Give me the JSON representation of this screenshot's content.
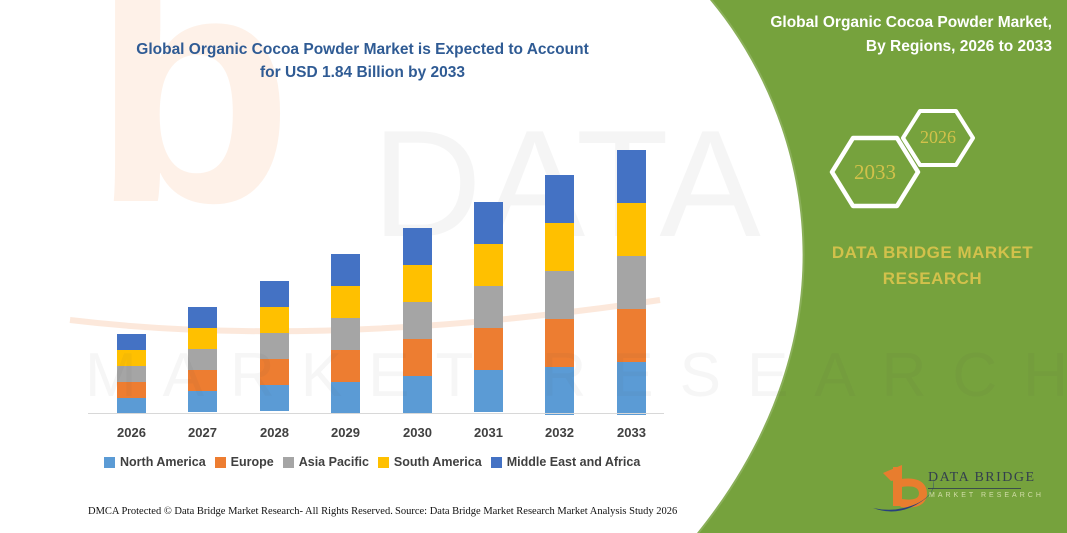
{
  "title": {
    "line1": "Global Organic Cocoa Powder Market is Expected to Account",
    "line2": "for USD 1.84 Billion by 2033"
  },
  "banner": {
    "line1": "Global Organic Cocoa Powder Market,",
    "line2": "By Regions, 2026 to 2033",
    "hexagons": [
      "2033",
      "2026"
    ],
    "brand": {
      "line1": "DATA BRIDGE MARKET",
      "line2": "RESEARCH"
    },
    "green_color": "#76A23D",
    "accent_yellow": "#D2C14B"
  },
  "logo": {
    "name": "DATA BRIDGE",
    "subtitle": "MARKET RESEARCH"
  },
  "watermark": {
    "glyph": "b",
    "letters": "DATA BRI",
    "sub": "MARKET RESEARCH"
  },
  "footer": {
    "dmca": "DMCA Protected © Data Bridge Market Research-  All Rights Reserved.",
    "source": "Source: Data Bridge Market Research  Market Analysis Study 2026"
  },
  "chart_data": {
    "type": "bar",
    "stacked": true,
    "title": "Global Organic Cocoa Powder Market is Expected to Account for USD 1.84 Billion by 2033",
    "unit": "USD Billion",
    "categories": [
      "2026",
      "2027",
      "2028",
      "2029",
      "2030",
      "2031",
      "2032",
      "2033"
    ],
    "series": [
      {
        "name": "North America",
        "color": "#5B9BD5",
        "values": [
          0.11,
          0.148,
          0.184,
          0.222,
          0.259,
          0.295,
          0.333,
          0.368
        ]
      },
      {
        "name": "Europe",
        "color": "#ED7D31",
        "values": [
          0.11,
          0.148,
          0.184,
          0.222,
          0.259,
          0.295,
          0.333,
          0.368
        ]
      },
      {
        "name": "Asia Pacific",
        "color": "#A5A5A5",
        "values": [
          0.11,
          0.148,
          0.184,
          0.222,
          0.259,
          0.295,
          0.333,
          0.368
        ]
      },
      {
        "name": "South America",
        "color": "#FFC000",
        "values": [
          0.11,
          0.148,
          0.184,
          0.222,
          0.259,
          0.295,
          0.333,
          0.368
        ]
      },
      {
        "name": "Middle East and Africa",
        "color": "#4472C4",
        "values": [
          0.11,
          0.148,
          0.184,
          0.222,
          0.259,
          0.295,
          0.333,
          0.368
        ]
      }
    ],
    "totals": [
      0.55,
      0.74,
      0.92,
      1.11,
      1.29,
      1.48,
      1.66,
      1.84
    ],
    "ylim": [
      0,
      2.0
    ],
    "grid": false,
    "axis_labels_visible": false,
    "legend_position": "bottom"
  }
}
